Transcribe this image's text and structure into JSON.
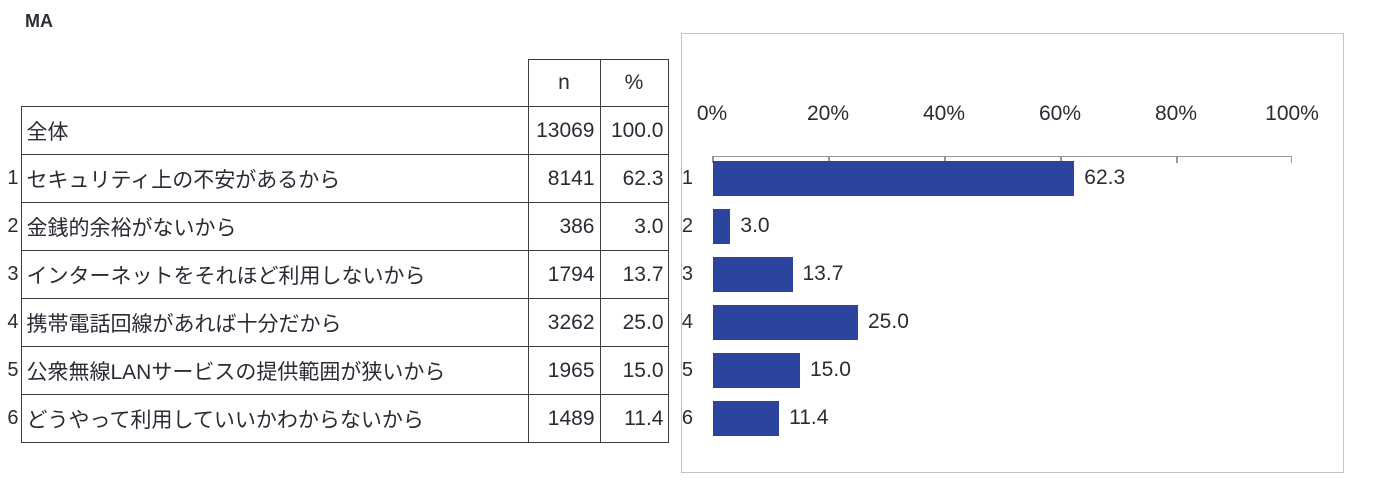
{
  "page": {
    "tag": "MA"
  },
  "table": {
    "header": {
      "n": "n",
      "pct": "%"
    },
    "total": {
      "label": "全体",
      "n": "13069",
      "pct": "100.0"
    },
    "rows": [
      {
        "no": "1",
        "label": "セキュリティ上の不安があるから",
        "n": "8141",
        "pct": "62.3"
      },
      {
        "no": "2",
        "label": "金銭的余裕がないから",
        "n": "386",
        "pct": "3.0"
      },
      {
        "no": "3",
        "label": "インターネットをそれほど利用しないから",
        "n": "1794",
        "pct": "13.7"
      },
      {
        "no": "4",
        "label": "携帯電話回線があれば十分だから",
        "n": "3262",
        "pct": "25.0"
      },
      {
        "no": "5",
        "label": "公衆無線LANサービスの提供範囲が狭いから",
        "n": "1965",
        "pct": "15.0"
      },
      {
        "no": "6",
        "label": "どうやって利用していいかわからないから",
        "n": "1489",
        "pct": "11.4"
      }
    ]
  },
  "chart_data": {
    "type": "bar",
    "orientation": "horizontal",
    "title": "",
    "categories": [
      "1",
      "2",
      "3",
      "4",
      "5",
      "6"
    ],
    "values": [
      62.3,
      3.0,
      13.7,
      25.0,
      15.0,
      11.4
    ],
    "data_labels": [
      "62.3",
      "3.0",
      "13.7",
      "25.0",
      "15.0",
      "11.4"
    ],
    "x_axis": {
      "position": "top",
      "min": 0,
      "max": 100,
      "ticks": [
        "0%",
        "20%",
        "40%",
        "60%",
        "80%",
        "100%"
      ]
    },
    "grid": false,
    "legend": "none",
    "bar_color": "#2b449d"
  },
  "colors": {
    "text": "#2b2b36",
    "bar": "#2b449d",
    "table_border": "#3d3d3d",
    "chart_border": "#c4c4c4",
    "axis": "#969696",
    "background": "#ffffff"
  }
}
